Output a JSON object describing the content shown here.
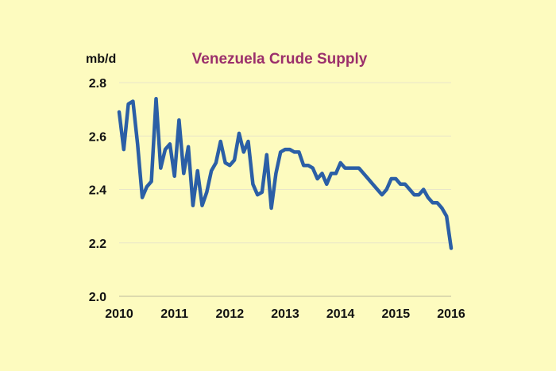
{
  "chart_data": {
    "type": "line",
    "title": "Venezuela Crude Supply",
    "ylabel": "mb/d",
    "xlabel": "",
    "xlim": [
      2010,
      2016
    ],
    "ylim": [
      2.0,
      2.8
    ],
    "xticks": [
      "2010",
      "2011",
      "2012",
      "2013",
      "2014",
      "2015",
      "2016"
    ],
    "yticks": [
      "2.0",
      "2.2",
      "2.4",
      "2.6",
      "2.8"
    ],
    "grid": true,
    "legend": "none",
    "colors": {
      "line": "#2b5fa6",
      "title": "#9b2f6b",
      "grid": "#e9e6c9",
      "background": "#fdfbbf"
    },
    "series": [
      {
        "x": [
          2010.0,
          2010.083,
          2010.167,
          2010.25,
          2010.333,
          2010.417,
          2010.5,
          2010.583,
          2010.667,
          2010.75,
          2010.833,
          2010.917,
          2011.0,
          2011.083,
          2011.167,
          2011.25,
          2011.333,
          2011.417,
          2011.5,
          2011.583,
          2011.667,
          2011.75,
          2011.833,
          2011.917,
          2012.0,
          2012.083,
          2012.167,
          2012.25,
          2012.333,
          2012.417,
          2012.5,
          2012.583,
          2012.667,
          2012.75,
          2012.833,
          2012.917,
          2013.0,
          2013.083,
          2013.167,
          2013.25,
          2013.333,
          2013.417,
          2013.5,
          2013.583,
          2013.667,
          2013.75,
          2013.833,
          2013.917,
          2014.0,
          2014.083,
          2014.167,
          2014.25,
          2014.333,
          2014.417,
          2014.5,
          2014.583,
          2014.667,
          2014.75,
          2014.833,
          2014.917,
          2015.0,
          2015.083,
          2015.167,
          2015.25,
          2015.333,
          2015.417,
          2015.5,
          2015.583,
          2015.667,
          2015.75,
          2015.833,
          2015.917,
          2016.0
        ],
        "values": [
          2.69,
          2.55,
          2.72,
          2.73,
          2.57,
          2.37,
          2.41,
          2.43,
          2.74,
          2.48,
          2.55,
          2.57,
          2.45,
          2.66,
          2.46,
          2.56,
          2.34,
          2.47,
          2.34,
          2.39,
          2.47,
          2.5,
          2.58,
          2.5,
          2.49,
          2.51,
          2.61,
          2.54,
          2.58,
          2.42,
          2.38,
          2.39,
          2.53,
          2.33,
          2.46,
          2.54,
          2.55,
          2.55,
          2.54,
          2.54,
          2.49,
          2.49,
          2.48,
          2.44,
          2.46,
          2.42,
          2.46,
          2.46,
          2.5,
          2.48,
          2.48,
          2.48,
          2.48,
          2.46,
          2.44,
          2.42,
          2.4,
          2.38,
          2.4,
          2.44,
          2.44,
          2.42,
          2.42,
          2.4,
          2.38,
          2.38,
          2.4,
          2.37,
          2.35,
          2.35,
          2.33,
          2.3,
          2.18
        ]
      }
    ]
  }
}
